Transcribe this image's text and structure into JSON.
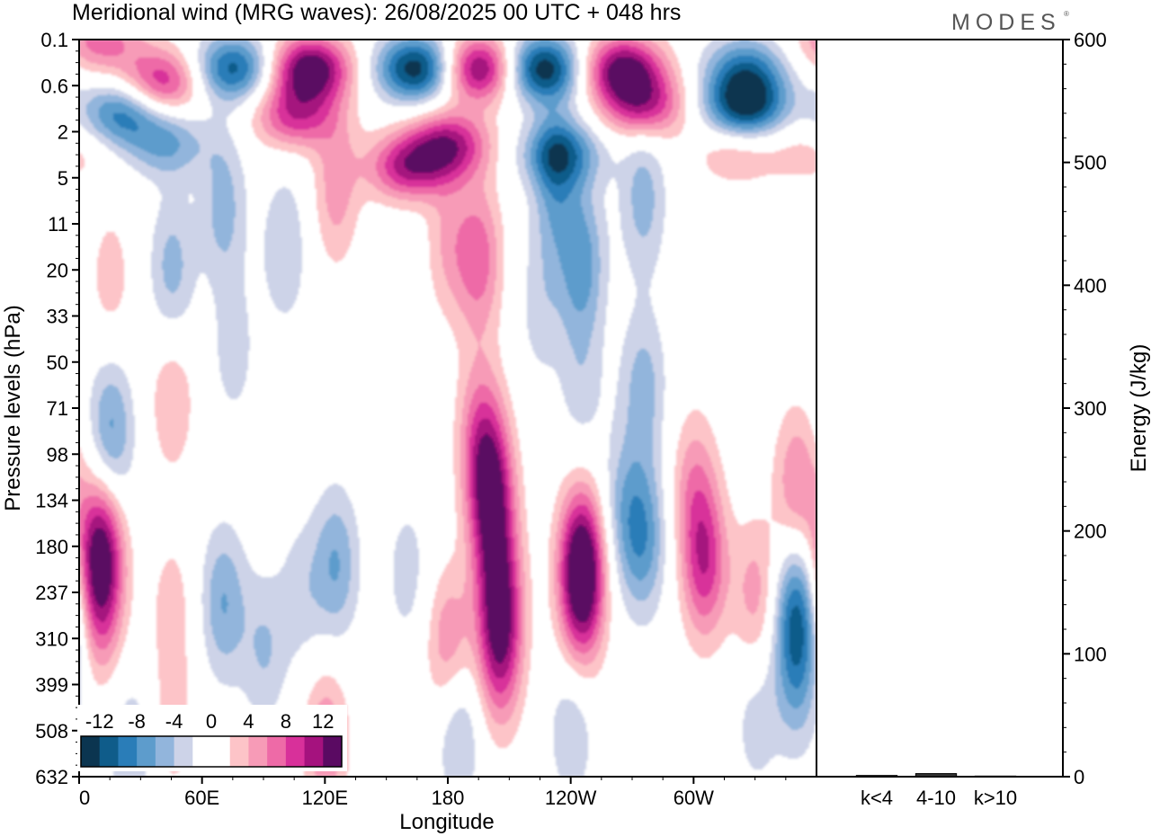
{
  "header": {
    "title": "Meridional wind (MRG waves):  26/08/2025  00 UTC  + 048 hrs",
    "logo": "MODES"
  },
  "chart_data": [
    {
      "type": "heatmap",
      "title": "Meridional wind (MRG waves):  26/08/2025  00 UTC  + 048 hrs",
      "xlabel": "Longitude",
      "ylabel": "Pressure levels (hPa)",
      "x_ticks": [
        "0",
        "60E",
        "120E",
        "180",
        "120W",
        "60W"
      ],
      "x_range": [
        0,
        360
      ],
      "y_ticks": [
        "0.1",
        "0.6",
        "2",
        "5",
        "11",
        "20",
        "33",
        "50",
        "71",
        "98",
        "134",
        "180",
        "237",
        "310",
        "399",
        "508",
        "632"
      ],
      "colorbar": {
        "labels": [
          "-12",
          "-8",
          "-4",
          "0",
          "4",
          "8",
          "12"
        ],
        "values": [
          -14,
          -12,
          -10,
          -8,
          -6,
          -4,
          -2,
          0,
          2,
          4,
          6,
          8,
          10,
          12,
          14
        ],
        "colors": [
          "#0b3550",
          "#0f5c8a",
          "#2a7db8",
          "#5d9ccc",
          "#92b5dc",
          "#cdd3e8",
          "#ffffff",
          "#ffffff",
          "#fdc4c8",
          "#f79bb7",
          "#ee6aa7",
          "#d8309a",
          "#a5127e",
          "#5a0a62"
        ]
      },
      "blobs": [
        {
          "lon": 10,
          "p": 0.1,
          "v": 7
        },
        {
          "lon": 40,
          "p": 0.5,
          "v": 10
        },
        {
          "lon": 20,
          "p": 1.2,
          "v": -9
        },
        {
          "lon": 42,
          "p": 2.5,
          "v": -6
        },
        {
          "lon": 75,
          "p": 0.3,
          "v": -11
        },
        {
          "lon": 112,
          "p": 0.3,
          "v": 14
        },
        {
          "lon": 165,
          "p": 0.3,
          "v": -14
        },
        {
          "lon": 195,
          "p": 0.3,
          "v": 14
        },
        {
          "lon": 225,
          "p": 0.3,
          "v": -14
        },
        {
          "lon": 265,
          "p": 0.3,
          "v": 13
        },
        {
          "lon": 275,
          "p": 1.0,
          "v": 10
        },
        {
          "lon": 325,
          "p": 0.3,
          "v": -8
        },
        {
          "lon": 325,
          "p": 1.0,
          "v": -13
        },
        {
          "lon": 105,
          "p": 1.3,
          "v": 9
        },
        {
          "lon": 180,
          "p": 2.5,
          "v": 10
        },
        {
          "lon": 160,
          "p": 4,
          "v": 10
        },
        {
          "lon": 125,
          "p": 6,
          "v": 5
        },
        {
          "lon": 70,
          "p": 8,
          "v": -5
        },
        {
          "lon": 235,
          "p": 3,
          "v": -8
        },
        {
          "lon": 232,
          "p": 5.5,
          "v": -6
        },
        {
          "lon": 275,
          "p": 7,
          "v": -5
        },
        {
          "lon": 100,
          "p": 15,
          "v": -4
        },
        {
          "lon": 45,
          "p": 20,
          "v": -5
        },
        {
          "lon": 15,
          "p": 22,
          "v": 3
        },
        {
          "lon": 195,
          "p": 17,
          "v": 7
        },
        {
          "lon": 180,
          "p": 14,
          "v": 4
        },
        {
          "lon": 245,
          "p": 18,
          "v": -7
        },
        {
          "lon": 225,
          "p": 30,
          "v": -3
        },
        {
          "lon": 320,
          "p": 3,
          "v": 4
        },
        {
          "lon": 355,
          "p": 3,
          "v": 3
        },
        {
          "lon": 75,
          "p": 45,
          "v": -3
        },
        {
          "lon": 45,
          "p": 65,
          "v": 4
        },
        {
          "lon": 275,
          "p": 60,
          "v": -5
        },
        {
          "lon": 245,
          "p": 60,
          "v": -3
        },
        {
          "lon": 15,
          "p": 85,
          "v": -7
        },
        {
          "lon": 195,
          "p": 80,
          "v": 5
        },
        {
          "lon": 200,
          "p": 115,
          "v": 9
        },
        {
          "lon": 202,
          "p": 160,
          "v": 6
        },
        {
          "lon": 205,
          "p": 250,
          "v": 9
        },
        {
          "lon": 205,
          "p": 350,
          "v": 7
        },
        {
          "lon": 10,
          "p": 180,
          "v": 12
        },
        {
          "lon": 10,
          "p": 260,
          "v": 6
        },
        {
          "lon": 245,
          "p": 195,
          "v": 13
        },
        {
          "lon": 245,
          "p": 260,
          "v": 6
        },
        {
          "lon": 305,
          "p": 200,
          "v": 9
        },
        {
          "lon": 300,
          "p": 120,
          "v": 5
        },
        {
          "lon": 330,
          "p": 240,
          "v": 5
        },
        {
          "lon": 350,
          "p": 120,
          "v": 6
        },
        {
          "lon": 275,
          "p": 170,
          "v": -7
        },
        {
          "lon": 265,
          "p": 140,
          "v": -4
        },
        {
          "lon": 350,
          "p": 270,
          "v": -10
        },
        {
          "lon": 350,
          "p": 400,
          "v": -4
        },
        {
          "lon": 125,
          "p": 200,
          "v": -6
        },
        {
          "lon": 108,
          "p": 240,
          "v": -3
        },
        {
          "lon": 70,
          "p": 250,
          "v": -6
        },
        {
          "lon": 90,
          "p": 330,
          "v": -4
        },
        {
          "lon": 180,
          "p": 320,
          "v": 6
        },
        {
          "lon": 160,
          "p": 210,
          "v": -3
        },
        {
          "lon": 185,
          "p": 500,
          "v": -5
        },
        {
          "lon": 120,
          "p": 530,
          "v": 6
        },
        {
          "lon": 25,
          "p": 560,
          "v": -4
        },
        {
          "lon": 45,
          "p": 260,
          "v": 3
        },
        {
          "lon": 45,
          "p": 500,
          "v": 3
        },
        {
          "lon": 240,
          "p": 500,
          "v": -4
        },
        {
          "lon": 330,
          "p": 480,
          "v": -3
        }
      ]
    },
    {
      "type": "bar",
      "categories": [
        "k<4",
        "4-10",
        "k>10"
      ],
      "values": [
        1.0,
        2.5,
        0.5
      ],
      "ylabel": "Energy (J/kg)",
      "ylim": [
        0,
        600
      ],
      "y_ticks": [
        "0",
        "100",
        "200",
        "300",
        "400",
        "500",
        "600"
      ]
    }
  ]
}
